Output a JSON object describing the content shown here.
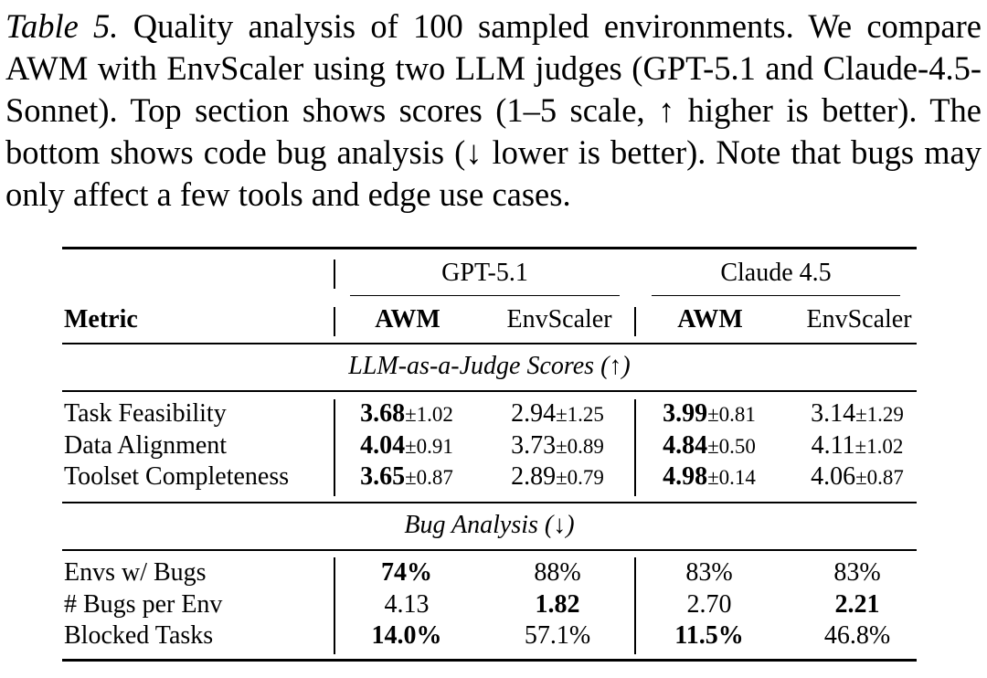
{
  "caption": {
    "label": "Table 5.",
    "text": " Quality analysis of 100 sampled environments. We compare AWM with EnvScaler using two LLM judges (GPT-5.1 and Claude-4.5-Sonnet). Top section shows scores (1–5 scale, ↑ higher is better). The bottom shows code bug analysis (↓ lower is better). Note that bugs may only affect a few tools and edge use cases."
  },
  "table": {
    "judges": [
      "GPT-5.1",
      "Claude 4.5"
    ],
    "metric_header": "Metric",
    "columns": [
      "AWM",
      "EnvScaler",
      "AWM",
      "EnvScaler"
    ],
    "section1_title": "LLM-as-a-Judge Scores (↑)",
    "section1_rows": [
      {
        "metric": "Task Feasibility",
        "cells": [
          {
            "v": "3.68",
            "pm": "±1.02",
            "bold": true
          },
          {
            "v": "2.94",
            "pm": "±1.25",
            "bold": false
          },
          {
            "v": "3.99",
            "pm": "±0.81",
            "bold": true
          },
          {
            "v": "3.14",
            "pm": "±1.29",
            "bold": false
          }
        ]
      },
      {
        "metric": "Data Alignment",
        "cells": [
          {
            "v": "4.04",
            "pm": "±0.91",
            "bold": true
          },
          {
            "v": "3.73",
            "pm": "±0.89",
            "bold": false
          },
          {
            "v": "4.84",
            "pm": "±0.50",
            "bold": true
          },
          {
            "v": "4.11",
            "pm": "±1.02",
            "bold": false
          }
        ]
      },
      {
        "metric": "Toolset Completeness",
        "cells": [
          {
            "v": "3.65",
            "pm": "±0.87",
            "bold": true
          },
          {
            "v": "2.89",
            "pm": "±0.79",
            "bold": false
          },
          {
            "v": "4.98",
            "pm": "±0.14",
            "bold": true
          },
          {
            "v": "4.06",
            "pm": "±0.87",
            "bold": false
          }
        ]
      }
    ],
    "section2_title": "Bug Analysis (↓)",
    "section2_rows": [
      {
        "metric": "Envs w/ Bugs",
        "cells": [
          {
            "v": "74%",
            "bold": true
          },
          {
            "v": "88%",
            "bold": false
          },
          {
            "v": "83%",
            "bold": false
          },
          {
            "v": "83%",
            "bold": false
          }
        ]
      },
      {
        "metric": "# Bugs per Env",
        "cells": [
          {
            "v": "4.13",
            "bold": false
          },
          {
            "v": "1.82",
            "bold": true
          },
          {
            "v": "2.70",
            "bold": false
          },
          {
            "v": "2.21",
            "bold": true
          }
        ]
      },
      {
        "metric": "Blocked Tasks",
        "cells": [
          {
            "v": "14.0%",
            "bold": true
          },
          {
            "v": "57.1%",
            "bold": false
          },
          {
            "v": "11.5%",
            "bold": true
          },
          {
            "v": "46.8%",
            "bold": false
          }
        ]
      }
    ]
  }
}
